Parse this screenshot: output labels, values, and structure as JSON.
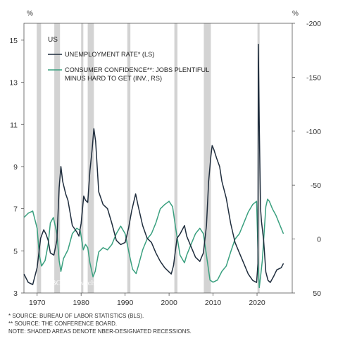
{
  "chart_data": {
    "type": "line",
    "region_label": "US",
    "left_unit": "%",
    "right_unit": "%",
    "x_ticks": [
      1970,
      1980,
      1990,
      2000,
      2010,
      2020
    ],
    "left_ticks": [
      3,
      5,
      7,
      9,
      11,
      13,
      15
    ],
    "left_ylim": [
      3,
      15.8
    ],
    "right_ticks": [
      50,
      0,
      -50,
      -100,
      -150,
      -200
    ],
    "right_ylim": [
      50,
      -200
    ],
    "xlim": [
      1967,
      2028
    ],
    "recessions": [
      [
        1969.9,
        1970.9
      ],
      [
        1973.9,
        1975.2
      ],
      [
        1980.0,
        1980.5
      ],
      [
        1981.5,
        1982.9
      ],
      [
        1990.5,
        1991.2
      ],
      [
        2001.2,
        2001.9
      ],
      [
        2007.9,
        2009.5
      ],
      [
        2020.1,
        2020.4
      ]
    ],
    "series": [
      {
        "name": "UNEMPLOYMENT RATE* (LS)",
        "color": "#1f2d3d",
        "axis": "left",
        "points": [
          [
            1967,
            3.9
          ],
          [
            1968,
            3.5
          ],
          [
            1969,
            3.4
          ],
          [
            1970,
            4.2
          ],
          [
            1970.8,
            5.6
          ],
          [
            1971.5,
            6.0
          ],
          [
            1972,
            5.8
          ],
          [
            1972.5,
            5.5
          ],
          [
            1973,
            4.9
          ],
          [
            1973.8,
            4.8
          ],
          [
            1974.5,
            5.5
          ],
          [
            1975,
            8.0
          ],
          [
            1975.4,
            9.0
          ],
          [
            1975.8,
            8.3
          ],
          [
            1976.5,
            7.7
          ],
          [
            1977,
            7.4
          ],
          [
            1978,
            6.2
          ],
          [
            1979,
            5.9
          ],
          [
            1979.5,
            5.7
          ],
          [
            1980,
            6.3
          ],
          [
            1980.6,
            7.6
          ],
          [
            1981,
            7.4
          ],
          [
            1981.5,
            7.3
          ],
          [
            1982,
            8.8
          ],
          [
            1982.5,
            9.8
          ],
          [
            1982.9,
            10.8
          ],
          [
            1983.3,
            10.2
          ],
          [
            1984,
            7.8
          ],
          [
            1985,
            7.2
          ],
          [
            1986,
            7.0
          ],
          [
            1987,
            6.3
          ],
          [
            1988,
            5.5
          ],
          [
            1989,
            5.3
          ],
          [
            1990,
            5.4
          ],
          [
            1990.8,
            6.1
          ],
          [
            1991.5,
            6.9
          ],
          [
            1992.4,
            7.7
          ],
          [
            1993,
            7.1
          ],
          [
            1994,
            6.2
          ],
          [
            1995,
            5.6
          ],
          [
            1996,
            5.4
          ],
          [
            1997,
            4.9
          ],
          [
            1998,
            4.5
          ],
          [
            1999,
            4.2
          ],
          [
            2000,
            4.0
          ],
          [
            2000.5,
            3.9
          ],
          [
            2001,
            4.3
          ],
          [
            2001.8,
            5.6
          ],
          [
            2002.5,
            5.8
          ],
          [
            2003.5,
            6.2
          ],
          [
            2004,
            5.7
          ],
          [
            2005,
            5.2
          ],
          [
            2006,
            4.7
          ],
          [
            2007,
            4.5
          ],
          [
            2007.8,
            4.9
          ],
          [
            2008.5,
            6.2
          ],
          [
            2009,
            8.3
          ],
          [
            2009.5,
            9.5
          ],
          [
            2009.8,
            10.0
          ],
          [
            2010.2,
            9.8
          ],
          [
            2010.8,
            9.4
          ],
          [
            2011.5,
            9.0
          ],
          [
            2012,
            8.3
          ],
          [
            2013,
            7.5
          ],
          [
            2014,
            6.3
          ],
          [
            2015,
            5.4
          ],
          [
            2016,
            4.9
          ],
          [
            2017,
            4.4
          ],
          [
            2018,
            3.9
          ],
          [
            2019,
            3.6
          ],
          [
            2019.9,
            3.5
          ],
          [
            2020.2,
            4.4
          ],
          [
            2020.3,
            14.8
          ],
          [
            2020.5,
            11.0
          ],
          [
            2020.8,
            7.0
          ],
          [
            2021,
            6.4
          ],
          [
            2021.5,
            5.5
          ],
          [
            2022,
            4.0
          ],
          [
            2022.5,
            3.6
          ],
          [
            2023,
            3.5
          ],
          [
            2023.8,
            3.8
          ],
          [
            2024.5,
            4.1
          ],
          [
            2025.5,
            4.2
          ],
          [
            2026,
            4.4
          ]
        ]
      },
      {
        "name": "CONSUMER CONFIDENCE**: JOBS PLENTIFUL MINUS HARD TO GET (INV., RS)",
        "color": "#3aa07f",
        "axis": "right",
        "points": [
          [
            1967,
            -20
          ],
          [
            1968,
            -24
          ],
          [
            1969,
            -26
          ],
          [
            1970,
            -10
          ],
          [
            1970.5,
            15
          ],
          [
            1971,
            25
          ],
          [
            1971.8,
            20
          ],
          [
            1972.5,
            5
          ],
          [
            1973,
            -15
          ],
          [
            1973.7,
            -20
          ],
          [
            1974.5,
            -5
          ],
          [
            1975,
            20
          ],
          [
            1975.4,
            30
          ],
          [
            1976,
            18
          ],
          [
            1977,
            10
          ],
          [
            1978,
            -5
          ],
          [
            1979,
            -10
          ],
          [
            1979.8,
            -8
          ],
          [
            1980.5,
            10
          ],
          [
            1981,
            5
          ],
          [
            1981.5,
            8
          ],
          [
            1982,
            22
          ],
          [
            1982.7,
            35
          ],
          [
            1983.2,
            30
          ],
          [
            1984,
            12
          ],
          [
            1985,
            8
          ],
          [
            1986,
            10
          ],
          [
            1987,
            5
          ],
          [
            1988,
            -5
          ],
          [
            1989,
            -12
          ],
          [
            1990,
            -5
          ],
          [
            1991,
            15
          ],
          [
            1991.7,
            28
          ],
          [
            1992.5,
            32
          ],
          [
            1993,
            25
          ],
          [
            1994,
            10
          ],
          [
            1995,
            0
          ],
          [
            1996,
            -5
          ],
          [
            1997,
            -15
          ],
          [
            1998,
            -28
          ],
          [
            1999,
            -32
          ],
          [
            2000,
            -35
          ],
          [
            2000.8,
            -30
          ],
          [
            2001.5,
            -10
          ],
          [
            2002.5,
            15
          ],
          [
            2003.5,
            22
          ],
          [
            2004,
            15
          ],
          [
            2005,
            5
          ],
          [
            2006,
            -5
          ],
          [
            2007,
            -10
          ],
          [
            2007.8,
            -5
          ],
          [
            2008.5,
            15
          ],
          [
            2009.3,
            38
          ],
          [
            2010,
            40
          ],
          [
            2011,
            38
          ],
          [
            2012,
            30
          ],
          [
            2013,
            25
          ],
          [
            2014,
            12
          ],
          [
            2015,
            0
          ],
          [
            2016,
            -5
          ],
          [
            2017,
            -15
          ],
          [
            2018,
            -25
          ],
          [
            2019,
            -32
          ],
          [
            2019.9,
            -35
          ],
          [
            2020.3,
            25
          ],
          [
            2020.5,
            45
          ],
          [
            2020.8,
            35
          ],
          [
            2021.2,
            20
          ],
          [
            2021.6,
            -5
          ],
          [
            2022,
            -30
          ],
          [
            2022.4,
            -37
          ],
          [
            2022.8,
            -35
          ],
          [
            2023.5,
            -28
          ],
          [
            2024.3,
            -22
          ],
          [
            2025.3,
            -12
          ],
          [
            2026,
            -5
          ]
        ]
      }
    ]
  },
  "watermark": "© BCA Research 2026",
  "notes": [
    "*  SOURCE: BUREAU OF LABOR STATISTICS (BLS).",
    "** SOURCE: THE CONFERENCE BOARD.",
    "NOTE: SHADED AREAS DENOTE NBER-DESIGNATED RECESSIONS."
  ]
}
